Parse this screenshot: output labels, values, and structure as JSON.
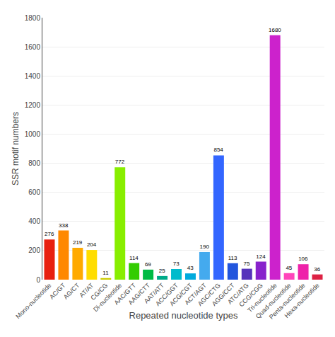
{
  "chart_data": {
    "type": "bar",
    "xlabel": "Repeated nucleotide types",
    "ylabel": "SSR motif numbers",
    "categories": [
      "Mono-nucleotide",
      "AC/GT",
      "AG/CT",
      "AT/AT",
      "CG/CG",
      "Di-nucleotide",
      "AAC/GTT",
      "AAG/CTT",
      "AAT/ATT",
      "ACC/GGT",
      "ACG/CGT",
      "ACT/AGT",
      "AGC/CTG",
      "AGG/CCT",
      "ATC/ATG",
      "CCG/CGG",
      "Tri-nucleotide",
      "Quad-nucleotide",
      "Penta-nucleotide",
      "Hexa-nucleotide"
    ],
    "values": [
      276,
      338,
      219,
      204,
      11,
      772,
      114,
      69,
      25,
      73,
      43,
      190,
      854,
      113,
      75,
      124,
      1680,
      45,
      106,
      36
    ],
    "colors": [
      "#e82010",
      "#ff8800",
      "#ffaa00",
      "#ffdd00",
      "#cccc00",
      "#88ee00",
      "#33cc00",
      "#00bb44",
      "#00aa88",
      "#00bbcc",
      "#00aadd",
      "#44aaee",
      "#3366ff",
      "#2255dd",
      "#5533bb",
      "#8822cc",
      "#cc22cc",
      "#ff44bb",
      "#ee22aa",
      "#dd2244"
    ],
    "ylim": [
      0,
      1800
    ],
    "yticks": [
      0,
      200,
      400,
      600,
      800,
      1000,
      1200,
      1400,
      1600,
      1800
    ],
    "grid": true,
    "data_labels": true
  }
}
